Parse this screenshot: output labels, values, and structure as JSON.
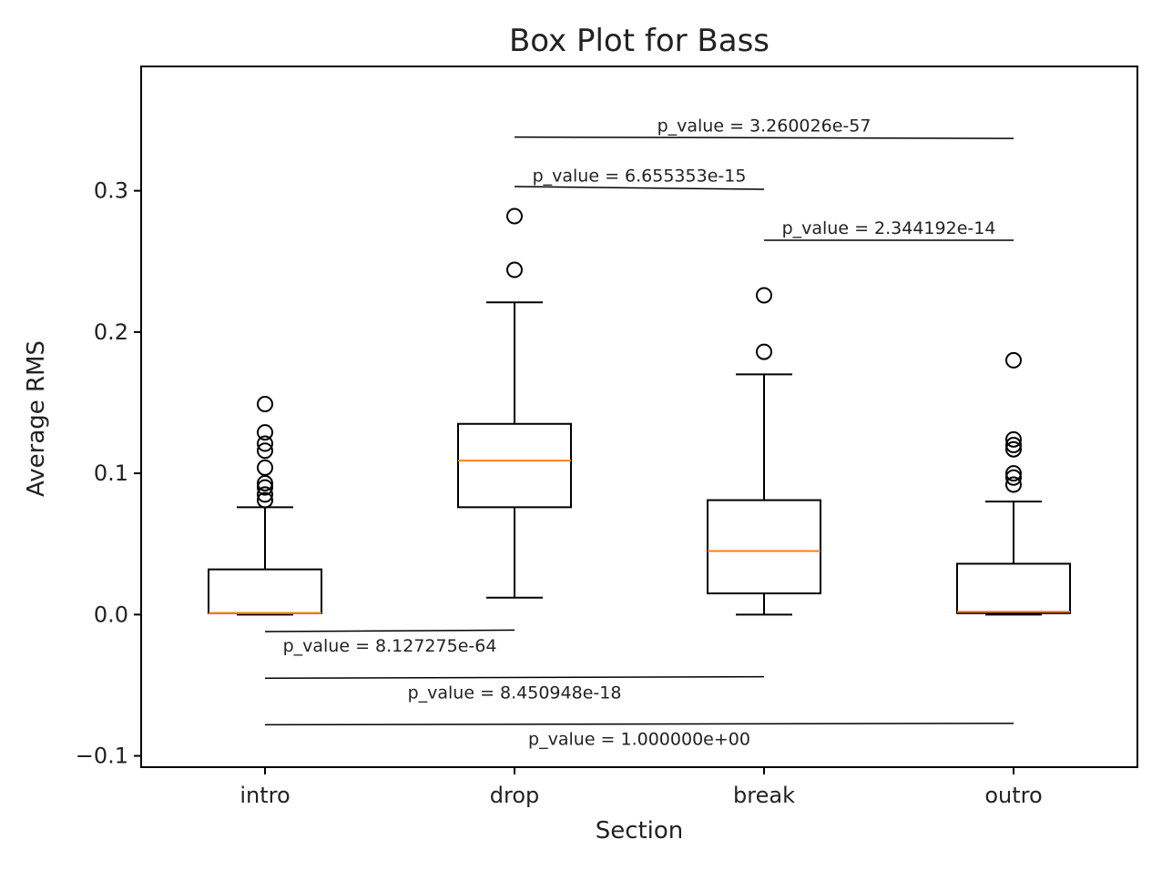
{
  "chart_data": {
    "type": "box",
    "title": "Box Plot for Bass",
    "xlabel": "Section",
    "ylabel": "Average RMS",
    "ylim": [
      -0.108,
      0.388
    ],
    "yticks": [
      {
        "value": -0.1,
        "label": "−0.1"
      },
      {
        "value": 0.0,
        "label": "0.0"
      },
      {
        "value": 0.1,
        "label": "0.1"
      },
      {
        "value": 0.2,
        "label": "0.2"
      },
      {
        "value": 0.3,
        "label": "0.3"
      }
    ],
    "categories": [
      "intro",
      "drop",
      "break",
      "outro"
    ],
    "boxes": [
      {
        "category": "intro",
        "whisker_low": 0.0,
        "q1": 0.001,
        "median": 0.001,
        "q3": 0.032,
        "whisker_high": 0.076,
        "outliers": [
          0.081,
          0.085,
          0.09,
          0.093,
          0.104,
          0.116,
          0.121,
          0.129,
          0.149
        ]
      },
      {
        "category": "drop",
        "whisker_low": 0.012,
        "q1": 0.076,
        "median": 0.109,
        "q3": 0.135,
        "whisker_high": 0.221,
        "outliers": [
          0.244,
          0.282
        ]
      },
      {
        "category": "break",
        "whisker_low": 0.0,
        "q1": 0.015,
        "median": 0.045,
        "q3": 0.081,
        "whisker_high": 0.17,
        "outliers": [
          0.186,
          0.226
        ]
      },
      {
        "category": "outro",
        "whisker_low": 0.0,
        "q1": 0.001,
        "median": 0.002,
        "q3": 0.036,
        "whisker_high": 0.08,
        "outliers": [
          0.092,
          0.097,
          0.1,
          0.117,
          0.12,
          0.124,
          0.18
        ]
      }
    ],
    "annotations": [
      {
        "from": "drop",
        "to": "outro",
        "y_start": 0.338,
        "y_end": 0.337,
        "label": "p_value = 3.260026e-57",
        "label_position": "above"
      },
      {
        "from": "drop",
        "to": "break",
        "y_start": 0.303,
        "y_end": 0.301,
        "label": "p_value = 6.655353e-15",
        "label_position": "above"
      },
      {
        "from": "break",
        "to": "outro",
        "y_start": 0.265,
        "y_end": 0.265,
        "label": "p_value = 2.344192e-14",
        "label_position": "above"
      },
      {
        "from": "intro",
        "to": "drop",
        "y_start": -0.012,
        "y_end": -0.011,
        "label": "p_value = 8.127275e-64",
        "label_position": "below"
      },
      {
        "from": "intro",
        "to": "break",
        "y_start": -0.045,
        "y_end": -0.044,
        "label": "p_value = 8.450948e-18",
        "label_position": "below"
      },
      {
        "from": "intro",
        "to": "outro",
        "y_start": -0.078,
        "y_end": -0.077,
        "label": "p_value = 1.000000e+00",
        "label_position": "below"
      }
    ],
    "colors": {
      "box": "#000000",
      "median": "#ff7f0e",
      "outlier": "#000000",
      "annotation": "#000000"
    },
    "grid": false,
    "legend": "none"
  }
}
